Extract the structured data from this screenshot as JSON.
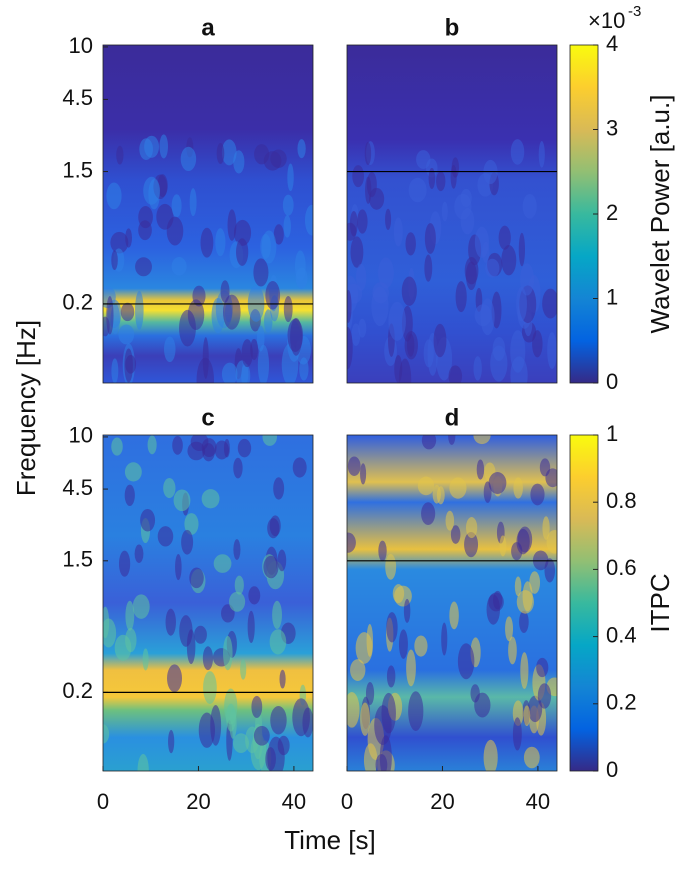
{
  "xlabel": "Time [s]",
  "ylabel": "Frequency [Hz]",
  "chart_data": [
    {
      "type": "heatmap",
      "title": "a",
      "xlim": [
        0,
        44
      ],
      "ylim": [
        0.06,
        10.3
      ],
      "log_y": true,
      "yticks": [
        10,
        4.5,
        1.5,
        0.2
      ],
      "reference_line": 0.2
    },
    {
      "type": "heatmap",
      "title": "b",
      "xlim": [
        0,
        44
      ],
      "ylim": [
        0.06,
        10.3
      ],
      "log_y": true,
      "reference_line": 1.5,
      "colorbar": {
        "label": "Wavelet Power [a.u.]",
        "lim": [
          0,
          4
        ],
        "ticks": [
          0,
          1,
          2,
          3,
          4
        ],
        "multiplier": "×10",
        "multiplier_exponent": "-3",
        "colors": [
          "#352a87",
          "#0363e1",
          "#1485d4",
          "#06a7c6",
          "#38b99e",
          "#92bf73",
          "#d9ba56",
          "#fcce2e",
          "#f9fb0e"
        ]
      }
    },
    {
      "type": "heatmap",
      "title": "c",
      "xlim": [
        0,
        44
      ],
      "ylim": [
        0.06,
        10.3
      ],
      "log_y": true,
      "xticks": [
        0,
        20,
        40
      ],
      "yticks": [
        10,
        4.5,
        1.5,
        0.2
      ],
      "reference_line": 0.2
    },
    {
      "type": "heatmap",
      "title": "d",
      "xlim": [
        0,
        44
      ],
      "ylim": [
        0.06,
        10.3
      ],
      "log_y": true,
      "xticks": [
        0,
        20,
        40
      ],
      "reference_line": 1.5,
      "colorbar": {
        "label": "ITPC",
        "lim": [
          0,
          1
        ],
        "ticks": [
          0,
          0.2,
          0.4,
          0.6,
          0.8,
          1
        ],
        "colors": [
          "#352a87",
          "#0363e1",
          "#1485d4",
          "#06a7c6",
          "#38b99e",
          "#92bf73",
          "#d9ba56",
          "#fcce2e",
          "#f9fb0e"
        ]
      }
    }
  ]
}
